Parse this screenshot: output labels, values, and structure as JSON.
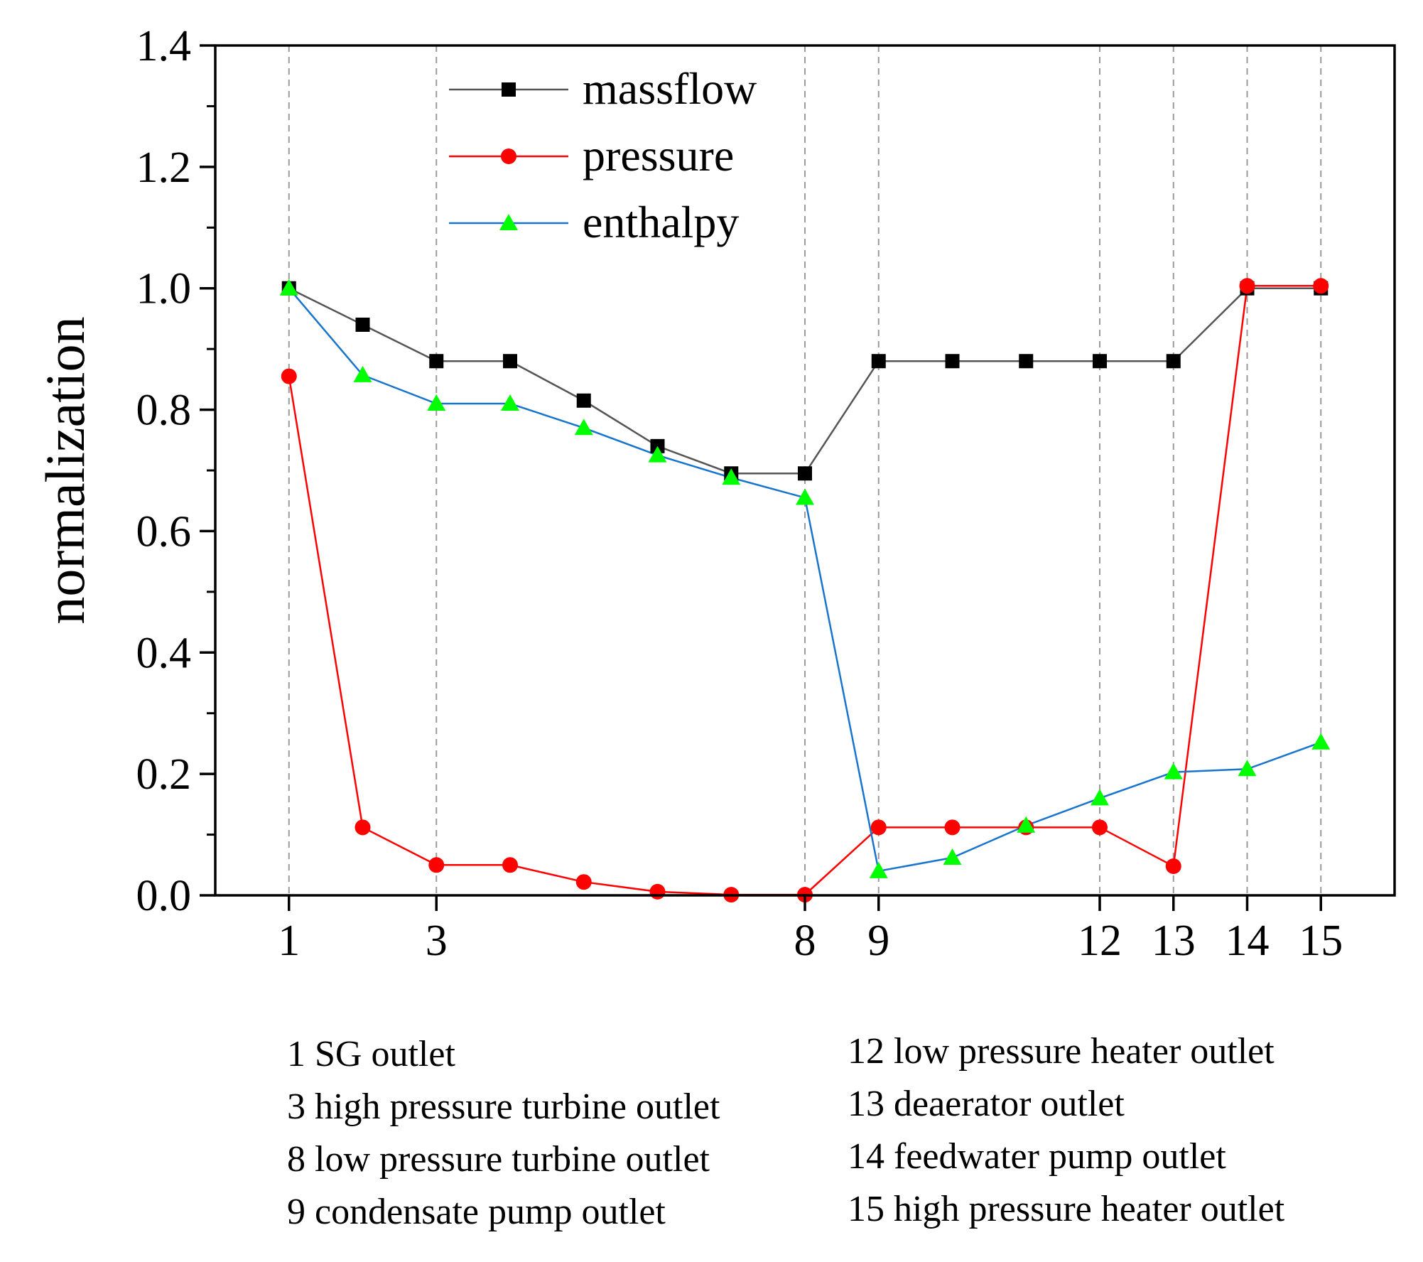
{
  "chart_data": {
    "type": "line",
    "ylabel": "normalization",
    "xlabel": "",
    "xlim": [
      0,
      16
    ],
    "ylim": [
      0,
      1.4
    ],
    "y_ticks": [
      0.0,
      0.2,
      0.4,
      0.6,
      0.8,
      1.0,
      1.2,
      1.4
    ],
    "y_tick_labels": [
      "0.0",
      "0.2",
      "0.4",
      "0.6",
      "0.8",
      "1.0",
      "1.2",
      "1.4"
    ],
    "x_ticks": [
      1,
      3,
      8,
      9,
      12,
      13,
      14,
      15
    ],
    "x_tick_labels": [
      "1",
      "3",
      "8",
      "9",
      "12",
      "13",
      "14",
      "15"
    ],
    "gridlines_x": [
      1,
      3,
      8,
      9,
      12,
      13,
      14,
      15
    ],
    "x": [
      1,
      2,
      3,
      4,
      5,
      6,
      7,
      8,
      9,
      10,
      11,
      12,
      13,
      14,
      15
    ],
    "series": [
      {
        "name": "massflow",
        "color": "#000000",
        "line_color": "#555555",
        "marker": "square",
        "values": [
          1.0,
          0.94,
          0.88,
          0.88,
          0.815,
          0.74,
          0.695,
          0.695,
          0.88,
          0.88,
          0.88,
          0.88,
          0.88,
          1.0,
          1.0
        ]
      },
      {
        "name": "pressure",
        "color": "#ff0000",
        "line_color": "#ff0000",
        "marker": "circle",
        "values": [
          0.855,
          0.112,
          0.05,
          0.05,
          0.022,
          0.006,
          0.001,
          0.001,
          0.112,
          0.112,
          0.112,
          0.112,
          0.048,
          1.004,
          1.004
        ]
      },
      {
        "name": "enthalpy",
        "color": "#00ff00",
        "line_color": "#1874cd",
        "marker": "triangle",
        "values": [
          1.0,
          0.857,
          0.81,
          0.81,
          0.77,
          0.725,
          0.688,
          0.655,
          0.04,
          0.062,
          0.115,
          0.16,
          0.203,
          0.208,
          0.252
        ]
      }
    ],
    "legend_position": "top-left"
  },
  "notes": {
    "left": [
      "1 SG outlet",
      "3 high pressure turbine outlet",
      "8 low pressure turbine outlet",
      "9 condensate pump outlet"
    ],
    "right": [
      "12 low pressure heater outlet",
      "13 deaerator outlet",
      "14 feedwater pump outlet",
      "15 high pressure heater outlet"
    ]
  }
}
